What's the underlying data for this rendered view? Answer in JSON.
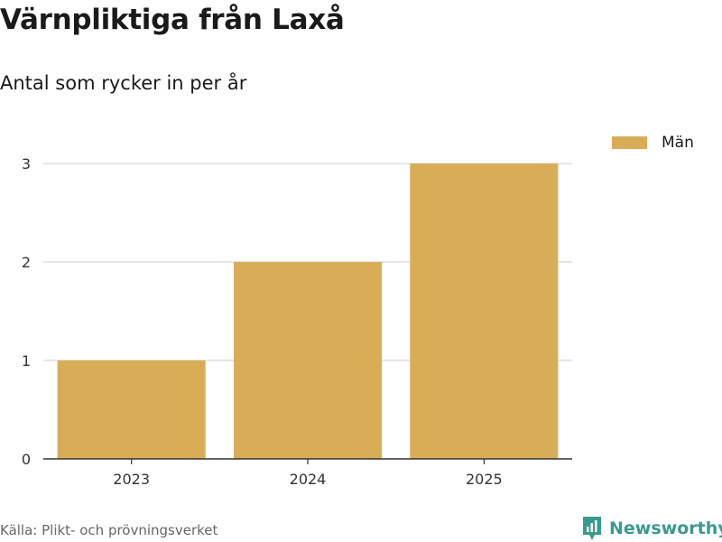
{
  "header": {
    "title": "Värnpliktiga från Laxå",
    "subtitle": "Antal som rycker in per år"
  },
  "footer": {
    "source": "Källa: Plikt- och prövningsverket",
    "brand": "Newsworthy"
  },
  "colors": {
    "bar": "#d9ad58",
    "grid": "#dddddd",
    "axis": "#333333",
    "brand": "#3a9a8e"
  },
  "chart_data": {
    "type": "bar",
    "title": "Värnpliktiga från Laxå",
    "subtitle": "Antal som rycker in per år",
    "categories": [
      "2023",
      "2024",
      "2025"
    ],
    "series": [
      {
        "name": "Män",
        "values": [
          1,
          2,
          3
        ]
      }
    ],
    "xlabel": "",
    "ylabel": "",
    "ylim": [
      0,
      3
    ],
    "yticks": [
      0,
      1,
      2,
      3
    ],
    "grid": true,
    "legend_position": "top-right"
  }
}
